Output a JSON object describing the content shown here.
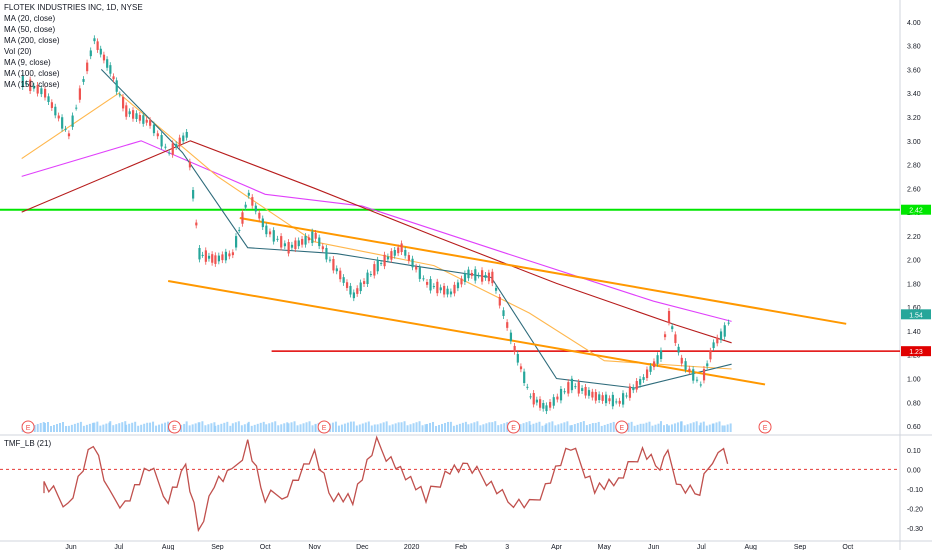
{
  "chart_title": "FLOTEK INDUSTRIES INC, 1D, NYSE",
  "legend_items": [
    "MA (20, close)",
    "MA (50, close)",
    "MA (200, close)",
    "Vol (20)",
    "MA (9, close)",
    "MA (100, close)",
    "MA (150, close)"
  ],
  "indicator_label": "TMF_LB (21)",
  "colors": {
    "candle_up": "#26a69a",
    "candle_down": "#ef5350",
    "trendline": "#ff9800",
    "support_green": "#00e600",
    "resistance_red": "#e00000",
    "ma_pink": "#e040fb",
    "ma_darkred": "#b71c1c",
    "ma_orange": "#ffb74d",
    "ma_teal": "#2e6b7b",
    "volume": "#90caf9",
    "tmf_line": "#c0504d",
    "zero_dash": "#e53935"
  },
  "chart_data": {
    "type": "line",
    "title": "FLOTEK INDUSTRIES INC, 1D, NYSE",
    "price_axis_ticks": [
      "4.00",
      "3.80",
      "3.60",
      "3.40",
      "3.20",
      "3.00",
      "2.80",
      "2.60",
      "2.40",
      "2.20",
      "2.00",
      "1.80",
      "1.60",
      "1.40",
      "1.20",
      "1.00",
      "0.80",
      "0.60"
    ],
    "price_ylim": [
      0.55,
      4.1
    ],
    "time_axis_labels": [
      "Jun",
      "Jul",
      "Aug",
      "Sep",
      "Oct",
      "Nov",
      "Dec",
      "2020",
      "Feb",
      "3",
      "Apr",
      "May",
      "Jun",
      "Jul",
      "Aug",
      "Sep",
      "Oct"
    ],
    "last_price_label": "1.54",
    "horizontal_line_labels": [
      "2.42",
      "1.23"
    ],
    "horizontal_lines": [
      {
        "name": "green support",
        "value": 2.42
      },
      {
        "name": "red level",
        "value": 1.23
      }
    ],
    "trend_channel": {
      "upper": [
        {
          "date": "2019-09-15",
          "value": 2.35
        },
        {
          "date": "2020-09-30",
          "value": 1.46
        }
      ],
      "lower": [
        {
          "date": "2019-08-01",
          "value": 1.82
        },
        {
          "date": "2020-08-10",
          "value": 0.95
        }
      ]
    },
    "price_series": {
      "name": "",
      "points": [
        [
          "2019-05-01",
          3.5
        ],
        [
          "2019-05-15",
          3.4
        ],
        [
          "2019-05-30",
          3.05
        ],
        [
          "2019-06-15",
          3.85
        ],
        [
          "2019-06-25",
          3.6
        ],
        [
          "2019-07-05",
          3.25
        ],
        [
          "2019-07-20",
          3.15
        ],
        [
          "2019-08-01",
          2.9
        ],
        [
          "2019-08-12",
          3.05
        ],
        [
          "2019-08-20",
          2.05
        ],
        [
          "2019-08-30",
          2.0
        ],
        [
          "2019-09-10",
          2.05
        ],
        [
          "2019-09-20",
          2.55
        ],
        [
          "2019-10-01",
          2.25
        ],
        [
          "2019-10-15",
          2.1
        ],
        [
          "2019-11-01",
          2.2
        ],
        [
          "2019-11-10",
          2.0
        ],
        [
          "2019-11-25",
          1.7
        ],
        [
          "2019-12-10",
          1.95
        ],
        [
          "2019-12-25",
          2.1
        ],
        [
          "2020-01-10",
          1.8
        ],
        [
          "2020-01-25",
          1.72
        ],
        [
          "2020-02-05",
          1.88
        ],
        [
          "2020-02-20",
          1.85
        ],
        [
          "2020-03-05",
          1.25
        ],
        [
          "2020-03-15",
          0.85
        ],
        [
          "2020-03-25",
          0.75
        ],
        [
          "2020-04-10",
          0.95
        ],
        [
          "2020-04-25",
          0.85
        ],
        [
          "2020-05-10",
          0.8
        ],
        [
          "2020-05-25",
          1.0
        ],
        [
          "2020-06-05",
          1.2
        ],
        [
          "2020-06-10",
          1.52
        ],
        [
          "2020-06-18",
          1.15
        ],
        [
          "2020-06-30",
          0.95
        ],
        [
          "2020-07-08",
          1.28
        ],
        [
          "2020-07-15",
          1.4
        ],
        [
          "2020-07-20",
          1.54
        ]
      ]
    },
    "ma_series": [
      {
        "name": "MA (200, close)",
        "color": "#e040fb",
        "points": [
          [
            "2019-05-01",
            2.7
          ],
          [
            "2019-07-15",
            3.0
          ],
          [
            "2019-10-01",
            2.55
          ],
          [
            "2019-12-01",
            2.45
          ],
          [
            "2020-03-01",
            2.05
          ],
          [
            "2020-06-01",
            1.65
          ],
          [
            "2020-07-20",
            1.48
          ]
        ]
      },
      {
        "name": "MA (150, close)",
        "color": "#b71c1c",
        "points": [
          [
            "2019-05-01",
            2.4
          ],
          [
            "2019-08-15",
            3.0
          ],
          [
            "2019-11-01",
            2.6
          ],
          [
            "2020-01-15",
            2.2
          ],
          [
            "2020-04-01",
            1.8
          ],
          [
            "2020-06-15",
            1.45
          ],
          [
            "2020-07-20",
            1.3
          ]
        ]
      },
      {
        "name": "MA (50, close)",
        "color": "#ffb74d",
        "points": [
          [
            "2019-05-01",
            2.85
          ],
          [
            "2019-07-01",
            3.4
          ],
          [
            "2019-09-01",
            2.7
          ],
          [
            "2019-11-01",
            2.15
          ],
          [
            "2020-01-15",
            1.95
          ],
          [
            "2020-03-15",
            1.55
          ],
          [
            "2020-05-01",
            1.15
          ],
          [
            "2020-07-20",
            1.08
          ]
        ]
      },
      {
        "name": "MA (20, close)",
        "color": "#2e6b7b",
        "points": [
          [
            "2019-06-20",
            3.6
          ],
          [
            "2019-08-10",
            2.9
          ],
          [
            "2019-09-20",
            2.1
          ],
          [
            "2019-11-15",
            2.05
          ],
          [
            "2020-01-01",
            1.95
          ],
          [
            "2020-02-20",
            1.85
          ],
          [
            "2020-04-01",
            1.0
          ],
          [
            "2020-05-20",
            0.92
          ],
          [
            "2020-07-20",
            1.12
          ]
        ]
      }
    ],
    "tmf": {
      "name": "TMF_LB (21)",
      "axis_ticks": [
        "0.10",
        "0.00",
        "-0.10",
        "-0.20",
        "-0.30"
      ],
      "ylim": [
        -0.36,
        0.16
      ],
      "zero_line": 0
    },
    "event_markers": [
      "E",
      "E",
      "E",
      "E",
      "E",
      "E"
    ]
  }
}
